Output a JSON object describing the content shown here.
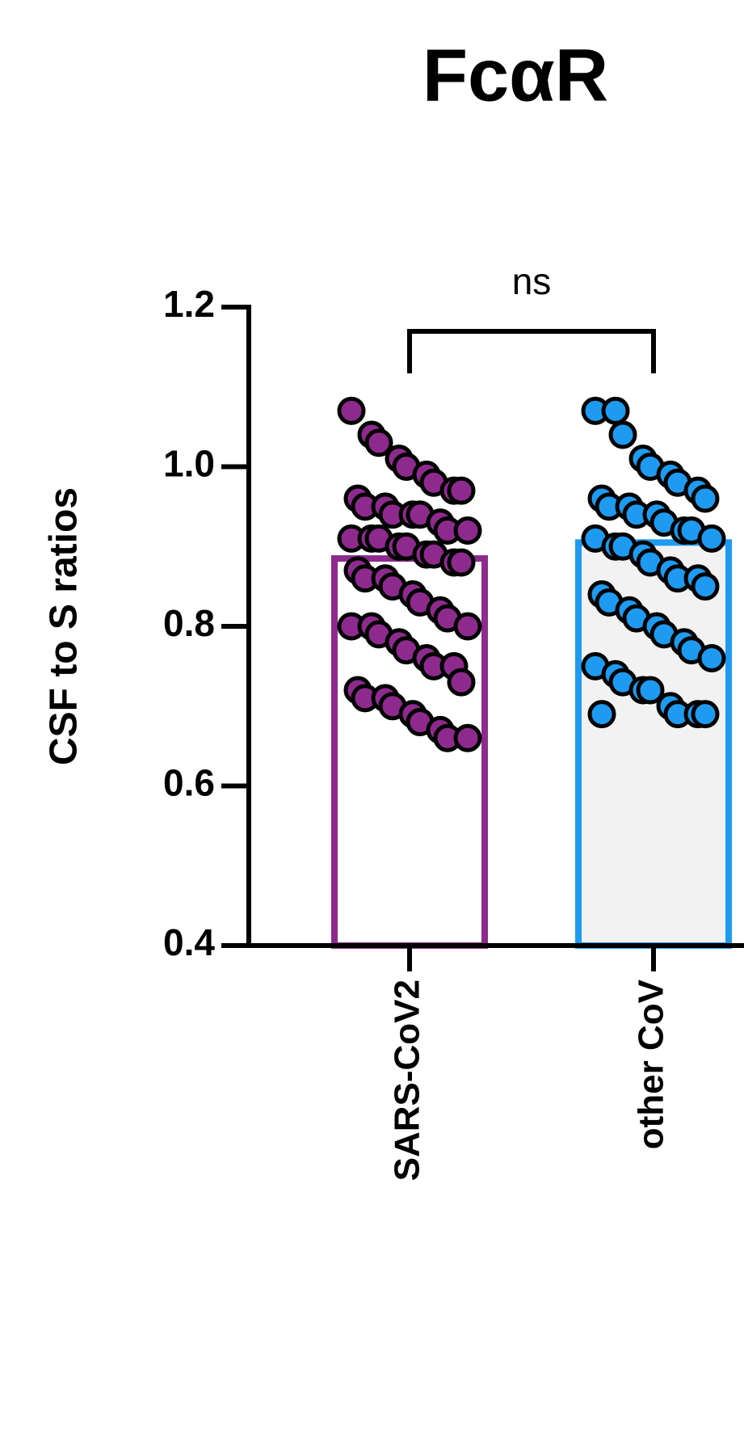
{
  "chart_data": {
    "type": "bar",
    "title": "FcαR",
    "y_label": "CSF to S ratios",
    "annotation": "ns",
    "categories": [
      "SARS-CoV2",
      "other CoV"
    ],
    "values": [
      0.885,
      0.905
    ],
    "colors": [
      "#8e2a8e",
      "#1e9bf0"
    ],
    "fills": [
      "#ffffff",
      "#f2f2f2"
    ],
    "points": [
      [
        1.07,
        1.04,
        1.03,
        1.01,
        1.0,
        0.99,
        0.98,
        0.97,
        0.97,
        0.96,
        0.95,
        0.95,
        0.94,
        0.94,
        0.94,
        0.93,
        0.92,
        0.92,
        0.91,
        0.91,
        0.91,
        0.9,
        0.9,
        0.89,
        0.89,
        0.88,
        0.88,
        0.87,
        0.86,
        0.86,
        0.85,
        0.84,
        0.83,
        0.82,
        0.81,
        0.8,
        0.8,
        0.8,
        0.79,
        0.78,
        0.77,
        0.76,
        0.75,
        0.75,
        0.73,
        0.72,
        0.71,
        0.71,
        0.7,
        0.69,
        0.68,
        0.67,
        0.66,
        0.66
      ],
      [
        1.07,
        1.07,
        1.04,
        1.01,
        1.0,
        0.99,
        0.98,
        0.97,
        0.96,
        0.96,
        0.95,
        0.95,
        0.94,
        0.94,
        0.93,
        0.92,
        0.92,
        0.91,
        0.91,
        0.9,
        0.9,
        0.89,
        0.88,
        0.87,
        0.86,
        0.86,
        0.85,
        0.84,
        0.83,
        0.82,
        0.81,
        0.8,
        0.79,
        0.78,
        0.77,
        0.76,
        0.75,
        0.74,
        0.73,
        0.72,
        0.72,
        0.7,
        0.69,
        0.69,
        0.69,
        0.69
      ]
    ],
    "ylim": [
      0.4,
      1.2
    ],
    "yticks": [
      0.4,
      0.6,
      0.8,
      {
        "value": 1,
        "label": "1.0"
      },
      1.2
    ]
  }
}
